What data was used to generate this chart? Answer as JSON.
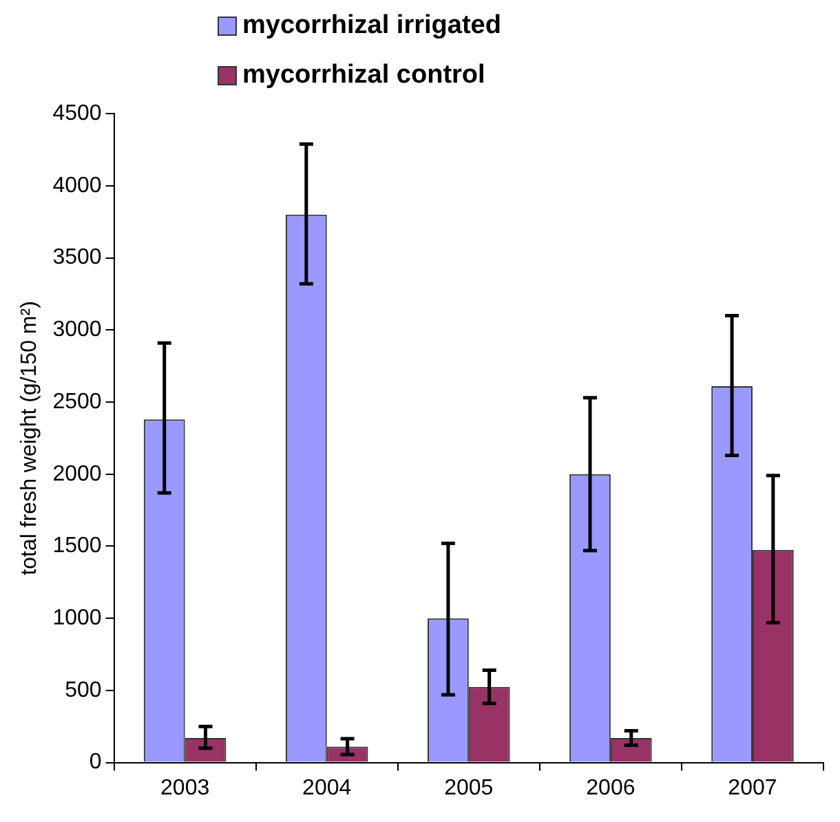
{
  "chart_data": {
    "type": "bar",
    "ylabel": "total fresh weight (g/150 m²)",
    "categories": [
      "2003",
      "2004",
      "2005",
      "2006",
      "2007"
    ],
    "series": [
      {
        "name": "mycorrhizal irrigated",
        "color": "#9999ff",
        "values": [
          2380,
          3800,
          1000,
          2000,
          2610
        ],
        "errors": [
          [
            1870,
            2910
          ],
          [
            3320,
            4290
          ],
          [
            470,
            1520
          ],
          [
            1470,
            2530
          ],
          [
            2130,
            3100
          ]
        ]
      },
      {
        "name": "mycorrhizal control",
        "color": "#993366",
        "values": [
          170,
          110,
          525,
          170,
          1475
        ],
        "errors": [
          [
            100,
            250
          ],
          [
            55,
            165
          ],
          [
            410,
            640
          ],
          [
            120,
            220
          ],
          [
            970,
            1990
          ]
        ]
      }
    ],
    "ylim": [
      0,
      4500
    ],
    "yticks": [
      0,
      500,
      1000,
      1500,
      2000,
      2500,
      3000,
      3500,
      4000,
      4500
    ],
    "grid": false,
    "legend": "top"
  }
}
